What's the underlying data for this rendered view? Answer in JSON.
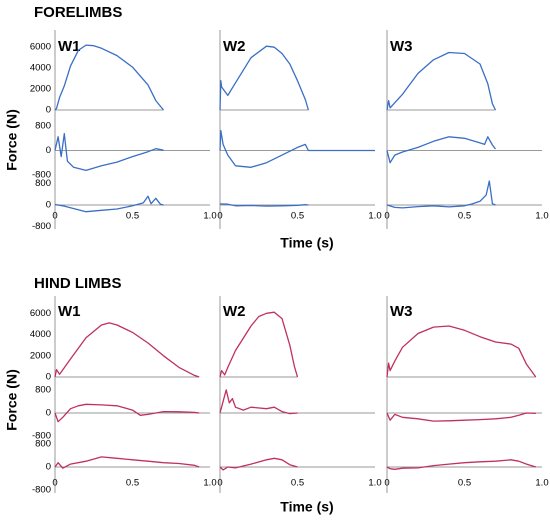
{
  "sections": [
    {
      "title": "FORELIMBS",
      "color": "#3a6fc4",
      "ylabel": "Force (N)",
      "xlabel": "Time (s)",
      "x_ticks": [
        "0",
        "0.5",
        "1.0"
      ],
      "row_ticks": [
        [
          "6000",
          "4000",
          "2000",
          "0"
        ],
        [
          "800",
          "0",
          "-800"
        ],
        [
          "800",
          "0",
          "-800"
        ]
      ],
      "panels": [
        {
          "label": "W1",
          "duration": 0.7,
          "rows": [
            [
              [
                0,
                0
              ],
              [
                0.01,
                150
              ],
              [
                0.03,
                1200
              ],
              [
                0.06,
                2300
              ],
              [
                0.1,
                4200
              ],
              [
                0.15,
                5700
              ],
              [
                0.2,
                6200
              ],
              [
                0.25,
                6150
              ],
              [
                0.3,
                5900
              ],
              [
                0.4,
                5200
              ],
              [
                0.5,
                4100
              ],
              [
                0.6,
                2400
              ],
              [
                0.65,
                900
              ],
              [
                0.7,
                0
              ]
            ],
            [
              [
                0,
                0
              ],
              [
                0.02,
                450
              ],
              [
                0.04,
                -200
              ],
              [
                0.06,
                550
              ],
              [
                0.08,
                -350
              ],
              [
                0.12,
                -550
              ],
              [
                0.2,
                -650
              ],
              [
                0.3,
                -500
              ],
              [
                0.4,
                -380
              ],
              [
                0.5,
                -200
              ],
              [
                0.6,
                -40
              ],
              [
                0.65,
                60
              ],
              [
                0.7,
                10
              ]
            ],
            [
              [
                0,
                20
              ],
              [
                0.05,
                -30
              ],
              [
                0.1,
                -100
              ],
              [
                0.2,
                -250
              ],
              [
                0.3,
                -200
              ],
              [
                0.4,
                -150
              ],
              [
                0.5,
                -30
              ],
              [
                0.57,
                80
              ],
              [
                0.6,
                330
              ],
              [
                0.62,
                50
              ],
              [
                0.65,
                250
              ],
              [
                0.68,
                30
              ],
              [
                0.7,
                0
              ]
            ]
          ]
        },
        {
          "label": "W2",
          "duration": 0.57,
          "rows": [
            [
              [
                0,
                0
              ],
              [
                0.005,
                2800
              ],
              [
                0.01,
                2200
              ],
              [
                0.05,
                1400
              ],
              [
                0.1,
                2600
              ],
              [
                0.2,
                5000
              ],
              [
                0.3,
                6100
              ],
              [
                0.35,
                6000
              ],
              [
                0.4,
                5400
              ],
              [
                0.45,
                4400
              ],
              [
                0.5,
                2800
              ],
              [
                0.55,
                1000
              ],
              [
                0.57,
                0
              ]
            ],
            [
              [
                0,
                0
              ],
              [
                0.005,
                650
              ],
              [
                0.02,
                200
              ],
              [
                0.05,
                -150
              ],
              [
                0.1,
                -500
              ],
              [
                0.2,
                -550
              ],
              [
                0.3,
                -400
              ],
              [
                0.4,
                -150
              ],
              [
                0.5,
                100
              ],
              [
                0.55,
                200
              ],
              [
                0.57,
                0
              ],
              [
                1.0,
                0
              ]
            ],
            [
              [
                0,
                40
              ],
              [
                0.05,
                30
              ],
              [
                0.1,
                -30
              ],
              [
                0.2,
                -20
              ],
              [
                0.3,
                -40
              ],
              [
                0.4,
                -30
              ],
              [
                0.5,
                -10
              ],
              [
                0.55,
                10
              ],
              [
                0.57,
                0
              ]
            ]
          ]
        },
        {
          "label": "W3",
          "duration": 0.7,
          "rows": [
            [
              [
                0,
                0
              ],
              [
                0.01,
                900
              ],
              [
                0.02,
                200
              ],
              [
                0.05,
                700
              ],
              [
                0.1,
                1500
              ],
              [
                0.2,
                3500
              ],
              [
                0.3,
                4800
              ],
              [
                0.4,
                5500
              ],
              [
                0.5,
                5400
              ],
              [
                0.6,
                4400
              ],
              [
                0.65,
                2500
              ],
              [
                0.68,
                600
              ],
              [
                0.7,
                0
              ]
            ],
            [
              [
                0,
                0
              ],
              [
                0.02,
                -400
              ],
              [
                0.05,
                -150
              ],
              [
                0.1,
                -50
              ],
              [
                0.2,
                100
              ],
              [
                0.3,
                300
              ],
              [
                0.4,
                450
              ],
              [
                0.5,
                400
              ],
              [
                0.6,
                250
              ],
              [
                0.63,
                200
              ],
              [
                0.65,
                450
              ],
              [
                0.68,
                180
              ],
              [
                0.7,
                50
              ]
            ],
            [
              [
                0,
                0
              ],
              [
                0.05,
                -90
              ],
              [
                0.1,
                -110
              ],
              [
                0.2,
                -60
              ],
              [
                0.3,
                -30
              ],
              [
                0.4,
                -70
              ],
              [
                0.5,
                -30
              ],
              [
                0.55,
                40
              ],
              [
                0.6,
                140
              ],
              [
                0.64,
                380
              ],
              [
                0.66,
                900
              ],
              [
                0.68,
                50
              ],
              [
                0.7,
                0
              ]
            ]
          ]
        }
      ]
    },
    {
      "title": "HIND LIMBS",
      "color": "#c0315c",
      "ylabel": "Force (N)",
      "xlabel": "Time (s)",
      "x_ticks": [
        "0",
        "0.5",
        "1.0"
      ],
      "row_ticks": [
        [
          "6000",
          "4000",
          "2000",
          "0"
        ],
        [
          "800",
          "0",
          "-800"
        ],
        [
          "800",
          "0",
          "-800"
        ]
      ],
      "panels": [
        {
          "label": "W1",
          "duration": 0.93,
          "rows": [
            [
              [
                0,
                0
              ],
              [
                0.01,
                700
              ],
              [
                0.03,
                250
              ],
              [
                0.1,
                1700
              ],
              [
                0.2,
                3700
              ],
              [
                0.3,
                4900
              ],
              [
                0.35,
                5100
              ],
              [
                0.4,
                4900
              ],
              [
                0.5,
                4200
              ],
              [
                0.6,
                3200
              ],
              [
                0.7,
                2000
              ],
              [
                0.8,
                900
              ],
              [
                0.9,
                150
              ],
              [
                0.93,
                0
              ]
            ],
            [
              [
                0,
                0
              ],
              [
                0.02,
                -300
              ],
              [
                0.05,
                -150
              ],
              [
                0.1,
                150
              ],
              [
                0.15,
                250
              ],
              [
                0.2,
                300
              ],
              [
                0.3,
                280
              ],
              [
                0.4,
                250
              ],
              [
                0.5,
                100
              ],
              [
                0.55,
                -80
              ],
              [
                0.6,
                -50
              ],
              [
                0.7,
                50
              ],
              [
                0.8,
                40
              ],
              [
                0.9,
                20
              ],
              [
                0.93,
                0
              ]
            ],
            [
              [
                0,
                0
              ],
              [
                0.02,
                150
              ],
              [
                0.05,
                -40
              ],
              [
                0.1,
                100
              ],
              [
                0.2,
                200
              ],
              [
                0.3,
                350
              ],
              [
                0.4,
                300
              ],
              [
                0.5,
                250
              ],
              [
                0.6,
                200
              ],
              [
                0.7,
                150
              ],
              [
                0.8,
                120
              ],
              [
                0.9,
                60
              ],
              [
                0.93,
                0
              ]
            ]
          ]
        },
        {
          "label": "W2",
          "duration": 0.5,
          "rows": [
            [
              [
                0,
                0
              ],
              [
                0.01,
                600
              ],
              [
                0.03,
                200
              ],
              [
                0.05,
                900
              ],
              [
                0.1,
                2500
              ],
              [
                0.2,
                4800
              ],
              [
                0.25,
                5700
              ],
              [
                0.3,
                6000
              ],
              [
                0.35,
                6100
              ],
              [
                0.4,
                5500
              ],
              [
                0.45,
                3000
              ],
              [
                0.48,
                1000
              ],
              [
                0.5,
                0
              ]
            ],
            [
              [
                0,
                0
              ],
              [
                0.02,
                400
              ],
              [
                0.04,
                800
              ],
              [
                0.06,
                350
              ],
              [
                0.08,
                500
              ],
              [
                0.1,
                200
              ],
              [
                0.15,
                100
              ],
              [
                0.2,
                200
              ],
              [
                0.3,
                150
              ],
              [
                0.35,
                200
              ],
              [
                0.4,
                50
              ],
              [
                0.45,
                -20
              ],
              [
                0.5,
                0
              ]
            ],
            [
              [
                0,
                0
              ],
              [
                0.02,
                -100
              ],
              [
                0.05,
                0
              ],
              [
                0.1,
                -30
              ],
              [
                0.2,
                100
              ],
              [
                0.3,
                250
              ],
              [
                0.35,
                300
              ],
              [
                0.4,
                250
              ],
              [
                0.45,
                80
              ],
              [
                0.5,
                0
              ]
            ]
          ]
        },
        {
          "label": "W3",
          "duration": 0.96,
          "rows": [
            [
              [
                0,
                0
              ],
              [
                0.01,
                1300
              ],
              [
                0.02,
                600
              ],
              [
                0.05,
                1500
              ],
              [
                0.1,
                2800
              ],
              [
                0.2,
                4100
              ],
              [
                0.3,
                4700
              ],
              [
                0.4,
                4800
              ],
              [
                0.5,
                4400
              ],
              [
                0.6,
                3800
              ],
              [
                0.7,
                3300
              ],
              [
                0.8,
                3100
              ],
              [
                0.85,
                2700
              ],
              [
                0.9,
                1200
              ],
              [
                0.96,
                0
              ]
            ],
            [
              [
                0,
                0
              ],
              [
                0.02,
                -250
              ],
              [
                0.05,
                -50
              ],
              [
                0.1,
                -150
              ],
              [
                0.2,
                -200
              ],
              [
                0.3,
                -280
              ],
              [
                0.4,
                -270
              ],
              [
                0.5,
                -250
              ],
              [
                0.6,
                -230
              ],
              [
                0.7,
                -200
              ],
              [
                0.8,
                -150
              ],
              [
                0.85,
                -80
              ],
              [
                0.9,
                0
              ],
              [
                0.96,
                -10
              ]
            ],
            [
              [
                0,
                0
              ],
              [
                0.02,
                -60
              ],
              [
                0.05,
                -80
              ],
              [
                0.1,
                -40
              ],
              [
                0.2,
                -30
              ],
              [
                0.3,
                50
              ],
              [
                0.4,
                100
              ],
              [
                0.5,
                150
              ],
              [
                0.6,
                180
              ],
              [
                0.7,
                200
              ],
              [
                0.8,
                250
              ],
              [
                0.85,
                200
              ],
              [
                0.9,
                100
              ],
              [
                0.96,
                0
              ]
            ]
          ]
        }
      ]
    }
  ],
  "chart_data": {
    "type": "line",
    "xlim": [
      0,
      1.0
    ],
    "row_ylims": [
      [
        0,
        6500
      ],
      [
        -900,
        900
      ],
      [
        -900,
        900
      ]
    ],
    "grid": false
  }
}
